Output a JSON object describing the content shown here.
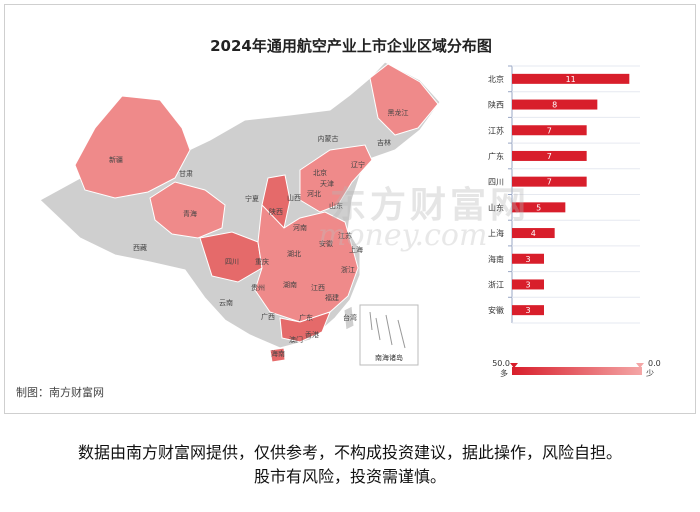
{
  "chart_data": {
    "type": "bar",
    "title": "2024年通用航空产业上市企业区域分布图",
    "categories": [
      "北京",
      "陕西",
      "江苏",
      "广东",
      "四川",
      "山东",
      "上海",
      "海南",
      "浙江",
      "安徽"
    ],
    "values": [
      11,
      8,
      7,
      7,
      7,
      5,
      4,
      3,
      3,
      3
    ],
    "xlim": [
      0,
      12
    ],
    "legend": {
      "max_label": "50.0",
      "min_label": "0.0",
      "more_label": "多",
      "less_label": "少",
      "high_color": "#d81e2b",
      "low_color": "#f4a6a6"
    }
  },
  "map": {
    "province_labels": [
      "新疆",
      "西藏",
      "青海",
      "甘肃",
      "内蒙古",
      "黑龙江",
      "吉林",
      "辽宁",
      "北京",
      "天津",
      "河北",
      "山西",
      "宁夏",
      "陕西",
      "山东",
      "河南",
      "江苏",
      "安徽",
      "上海",
      "湖北",
      "四川",
      "重庆",
      "浙江",
      "江西",
      "湖南",
      "贵州",
      "云南",
      "广西",
      "广东",
      "福建",
      "台湾",
      "香港",
      "澳门",
      "海南"
    ],
    "inset_label": "南海诸岛",
    "colors": {
      "default": "#cfcfcf",
      "light": "#ef8a8a",
      "medium": "#e56a6a",
      "strong": "#dc4848",
      "border": "#ffffff"
    }
  },
  "watermark": {
    "text": "东方财富网",
    "sub": "money.com"
  },
  "credit": "制图：南方财富网",
  "disclaimer": {
    "line1": "数据由南方财富网提供，仅供参考，不构成投资建议，据此操作，风险自担。",
    "line2": "股市有风险，投资需谨慎。"
  }
}
